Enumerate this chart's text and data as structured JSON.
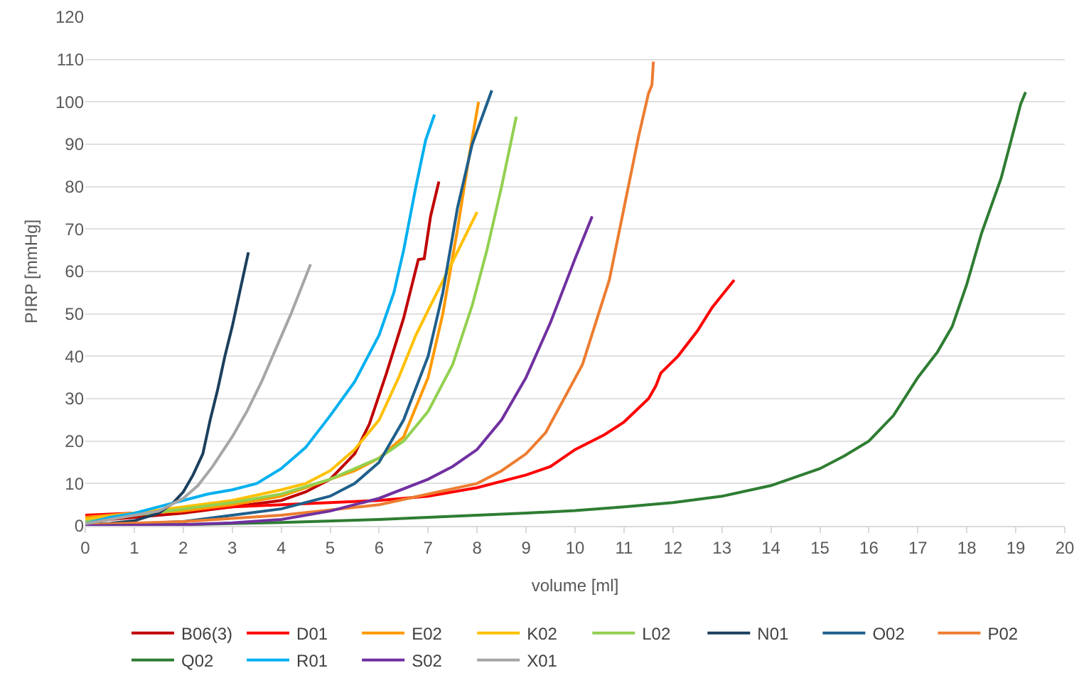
{
  "chart_data": {
    "type": "line",
    "xlabel": "volume [ml]",
    "ylabel": "PIRP [mmHg]",
    "xlim": [
      0,
      20
    ],
    "xticks": [
      0,
      1,
      2,
      3,
      4,
      5,
      6,
      7,
      8,
      9,
      10,
      11,
      12,
      13,
      14,
      15,
      16,
      17,
      18,
      19,
      20
    ],
    "ylim": [
      0,
      120
    ],
    "yticks": [
      0,
      10,
      20,
      30,
      40,
      50,
      60,
      70,
      80,
      90,
      100,
      110,
      120
    ],
    "grid": "y",
    "legend": "bottom",
    "marker": "none",
    "line_style": "solid",
    "series": [
      {
        "name": "B06(3)",
        "color": "#c00000",
        "x": [
          0,
          1,
          2,
          3,
          4,
          4.5,
          5,
          5.5,
          5.8,
          6.15,
          6.5,
          6.8,
          6.92,
          7.05,
          7.22
        ],
        "values": [
          1,
          2,
          3,
          4.5,
          6,
          8,
          11,
          17,
          24,
          36,
          49,
          62.8,
          63,
          73,
          81.2
        ]
      },
      {
        "name": "D01",
        "color": "#ff0000",
        "x": [
          0,
          1,
          2,
          3,
          4,
          5,
          6,
          7,
          8,
          9,
          9.5,
          10,
          10.6,
          11,
          11.5,
          11.65,
          11.75,
          12.1,
          12.5,
          12.8,
          13.25
        ],
        "values": [
          2.5,
          3,
          3.5,
          4.5,
          5,
          5.5,
          6,
          7,
          9,
          12,
          14,
          18,
          21.5,
          24.5,
          30,
          33,
          36,
          40,
          46,
          51.5,
          58
        ]
      },
      {
        "name": "E02",
        "color": "#ff9900",
        "x": [
          0,
          1,
          2,
          3,
          4,
          5,
          5.5,
          6,
          6.5,
          7,
          7.3,
          7.6,
          7.85,
          8.03
        ],
        "values": [
          2,
          3,
          3.5,
          5,
          7,
          11,
          13,
          16,
          21,
          35,
          50,
          70,
          88,
          100
        ]
      },
      {
        "name": "K02",
        "color": "#ffc000",
        "x": [
          0,
          1,
          2,
          3,
          4,
          4.5,
          5,
          5.5,
          6,
          6.4,
          6.75,
          7.05,
          7.4,
          7.7,
          8
        ],
        "values": [
          1.5,
          3,
          4.5,
          6,
          8.5,
          10,
          13,
          18,
          25,
          35,
          45,
          52,
          60,
          67,
          74
        ]
      },
      {
        "name": "L02",
        "color": "#92d050",
        "x": [
          0,
          1,
          2,
          3,
          4,
          5,
          6,
          6.5,
          7,
          7.5,
          7.9,
          8.2,
          8.5,
          8.8
        ],
        "values": [
          1,
          2.5,
          4,
          5.5,
          7.5,
          11,
          16,
          20,
          27,
          38,
          52,
          65,
          80,
          96.5
        ]
      },
      {
        "name": "N01",
        "color": "#1b3f5e",
        "x": [
          0,
          0.5,
          1,
          1.5,
          1.8,
          2,
          2.2,
          2.4,
          2.55,
          2.7,
          2.85,
          3,
          3.15,
          3.33
        ],
        "values": [
          0.3,
          0.6,
          1.2,
          3,
          5.5,
          8,
          12,
          17,
          25,
          32,
          40,
          47,
          55,
          64.5
        ]
      },
      {
        "name": "O02",
        "color": "#1f5f8b",
        "x": [
          0,
          1,
          2,
          3,
          4,
          5,
          5.5,
          6,
          6.5,
          7,
          7.3,
          7.6,
          7.9,
          8.3
        ],
        "values": [
          0.5,
          0.5,
          1,
          2.5,
          4,
          7,
          10,
          15,
          25,
          40,
          55,
          75,
          90,
          102.7
        ]
      },
      {
        "name": "P02",
        "color": "#ed7d31",
        "x": [
          0,
          2,
          4,
          6,
          7,
          8,
          8.5,
          9,
          9.4,
          10.15,
          10.7,
          11,
          11.3,
          11.5,
          11.57,
          11.6
        ],
        "values": [
          0.3,
          1,
          2.5,
          5,
          7.5,
          10,
          13,
          17,
          22,
          38,
          58,
          75,
          92,
          102,
          104,
          109.5
        ]
      },
      {
        "name": "Q02",
        "color": "#2e7d32",
        "x": [
          0,
          2,
          4,
          6,
          8,
          9,
          10,
          11,
          12,
          13,
          14,
          15,
          15.5,
          16,
          16.5,
          17,
          17.4,
          17.7,
          18,
          18.3,
          18.7,
          19.1,
          19.2
        ],
        "values": [
          0,
          0.3,
          0.8,
          1.5,
          2.5,
          3,
          3.6,
          4.5,
          5.5,
          7,
          9.5,
          13.5,
          16.5,
          20,
          26,
          35,
          41,
          47,
          57,
          69,
          82,
          99.5,
          102.3
        ]
      },
      {
        "name": "R01",
        "color": "#00b0f0",
        "x": [
          0,
          0.5,
          1,
          1.5,
          2,
          2.5,
          3,
          3.5,
          4,
          4.5,
          5,
          5.5,
          6,
          6.3,
          6.5,
          6.75,
          6.95,
          7.13
        ],
        "values": [
          0.5,
          2,
          3,
          4.5,
          6,
          7.5,
          8.5,
          10,
          13.5,
          18.5,
          26,
          34,
          45,
          55,
          65,
          80,
          91,
          97
        ]
      },
      {
        "name": "S02",
        "color": "#7030a0",
        "x": [
          0,
          2,
          3,
          4,
          5,
          6,
          7,
          7.5,
          8,
          8.5,
          9,
          9.5,
          10,
          10.35
        ],
        "values": [
          0,
          0.3,
          0.7,
          1.5,
          3.5,
          6.5,
          11,
          14,
          18,
          25,
          35,
          48,
          63,
          73
        ]
      },
      {
        "name": "X01",
        "color": "#a6a6a6",
        "x": [
          0,
          0.5,
          1,
          1.5,
          2,
          2.3,
          2.6,
          3,
          3.3,
          3.6,
          3.9,
          4.2,
          4.6
        ],
        "values": [
          0.5,
          1.5,
          2.5,
          3.5,
          6.5,
          9.5,
          14,
          21,
          27,
          34,
          42,
          50,
          61.7
        ]
      }
    ]
  }
}
